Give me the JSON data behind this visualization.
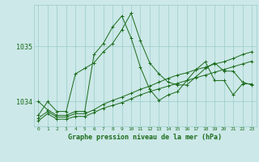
{
  "background_color": "#cce8e8",
  "grid_color": "#99cccc",
  "line_color": "#1a6b1a",
  "title": "Graphe pression niveau de la mer (hPa)",
  "yticks": [
    1034,
    1035
  ],
  "ylim": [
    1033.55,
    1035.75
  ],
  "xlim": [
    -0.5,
    23.5
  ],
  "series": [
    [
      1033.75,
      1034.0,
      1033.82,
      1033.82,
      1034.5,
      1034.6,
      1034.7,
      1034.9,
      1035.05,
      1035.3,
      1035.6,
      1035.1,
      1034.7,
      1034.5,
      1034.35,
      1034.3,
      1034.3,
      1034.45,
      1034.6,
      1034.7,
      1034.55,
      1034.55,
      1034.35,
      1034.3
    ],
    [
      1033.7,
      1033.82,
      1033.72,
      1033.72,
      1033.78,
      1033.78,
      1033.85,
      1033.95,
      1034.02,
      1034.08,
      1034.15,
      1034.22,
      1034.28,
      1034.35,
      1034.42,
      1034.48,
      1034.52,
      1034.58,
      1034.62,
      1034.68,
      1034.72,
      1034.78,
      1034.85,
      1034.9
    ],
    [
      1033.65,
      1033.78,
      1033.68,
      1033.68,
      1033.73,
      1033.73,
      1033.8,
      1033.88,
      1033.93,
      1033.98,
      1034.05,
      1034.12,
      1034.18,
      1034.23,
      1034.28,
      1034.33,
      1034.38,
      1034.43,
      1034.48,
      1034.53,
      1034.58,
      1034.63,
      1034.68,
      1034.73
    ],
    [
      1034.0,
      1033.85,
      1033.75,
      1033.75,
      1033.82,
      1033.82,
      1034.85,
      1035.05,
      1035.35,
      1035.55,
      1035.15,
      1034.62,
      1034.22,
      1034.02,
      1034.12,
      1034.18,
      1034.38,
      1034.58,
      1034.72,
      1034.38,
      1034.38,
      1034.12,
      1034.32,
      1034.32
    ]
  ]
}
